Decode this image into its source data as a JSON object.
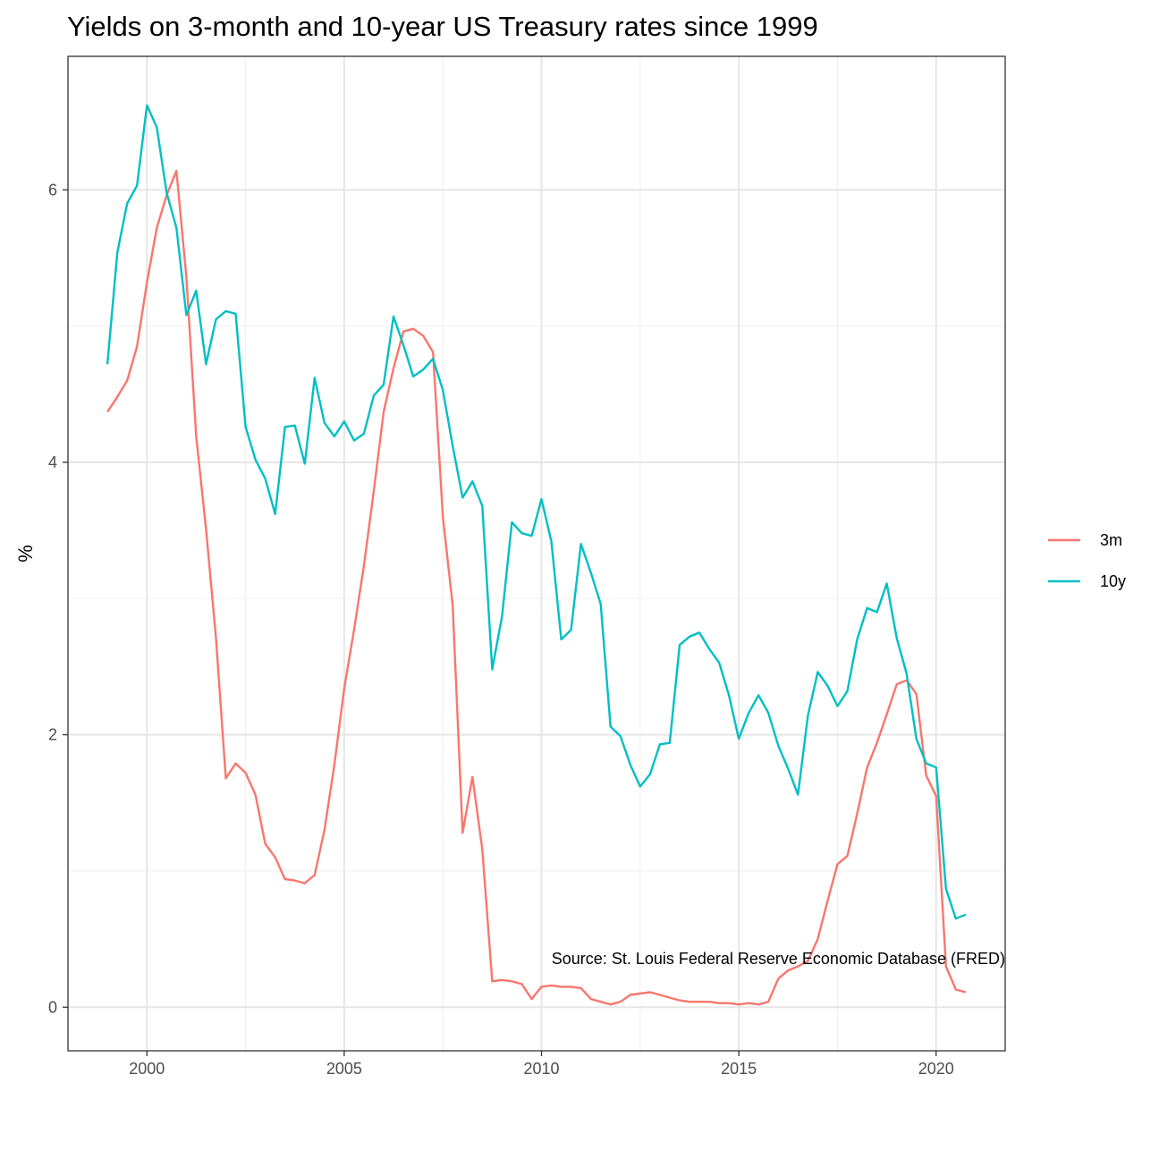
{
  "chart_data": {
    "type": "line",
    "title": "Yields on 3-month and 10-year US Treasury rates since 1999",
    "xlabel": "",
    "ylabel": "%",
    "caption": "Source: St. Louis Federal Reserve Economic Database (FRED)",
    "xlim": [
      1998.0,
      2021.75
    ],
    "ylim": [
      -0.32,
      6.98
    ],
    "x_ticks": [
      2000,
      2005,
      2010,
      2015,
      2020
    ],
    "x_tick_labels": [
      "2000",
      "2005",
      "2010",
      "2015",
      "2020"
    ],
    "y_ticks": [
      0,
      2,
      4,
      6
    ],
    "y_tick_labels": [
      "0",
      "2",
      "4",
      "6"
    ],
    "grid": true,
    "legend": "right",
    "x": [
      1999.0,
      1999.25,
      1999.5,
      1999.75,
      2000.0,
      2000.25,
      2000.5,
      2000.75,
      2001.0,
      2001.25,
      2001.5,
      2001.75,
      2002.0,
      2002.25,
      2002.5,
      2002.75,
      2003.0,
      2003.25,
      2003.5,
      2003.75,
      2004.0,
      2004.25,
      2004.5,
      2004.75,
      2005.0,
      2005.25,
      2005.5,
      2005.75,
      2006.0,
      2006.25,
      2006.5,
      2006.75,
      2007.0,
      2007.25,
      2007.5,
      2007.75,
      2008.0,
      2008.25,
      2008.5,
      2008.75,
      2009.0,
      2009.25,
      2009.5,
      2009.75,
      2010.0,
      2010.25,
      2010.5,
      2010.75,
      2011.0,
      2011.25,
      2011.5,
      2011.75,
      2012.0,
      2012.25,
      2012.5,
      2012.75,
      2013.0,
      2013.25,
      2013.5,
      2013.75,
      2014.0,
      2014.25,
      2014.5,
      2014.75,
      2015.0,
      2015.25,
      2015.5,
      2015.75,
      2016.0,
      2016.25,
      2016.5,
      2016.75,
      2017.0,
      2017.25,
      2017.5,
      2017.75,
      2018.0,
      2018.25,
      2018.5,
      2018.75,
      2019.0,
      2019.25,
      2019.5,
      2019.75,
      2020.0,
      2020.25,
      2020.5,
      2020.75
    ],
    "series": [
      {
        "name": "3m",
        "color": "#F8766D",
        "values": [
          4.37,
          4.48,
          4.6,
          4.85,
          5.32,
          5.72,
          5.96,
          6.14,
          5.36,
          4.19,
          3.51,
          2.71,
          1.68,
          1.79,
          1.72,
          1.56,
          1.2,
          1.1,
          0.94,
          0.93,
          0.91,
          0.97,
          1.3,
          1.78,
          2.34,
          2.77,
          3.24,
          3.79,
          4.37,
          4.69,
          4.96,
          4.98,
          4.93,
          4.81,
          3.6,
          2.95,
          1.28,
          1.69,
          1.16,
          0.19,
          0.2,
          0.19,
          0.17,
          0.06,
          0.15,
          0.16,
          0.15,
          0.15,
          0.14,
          0.06,
          0.04,
          0.02,
          0.04,
          0.09,
          0.1,
          0.11,
          0.09,
          0.07,
          0.05,
          0.04,
          0.04,
          0.04,
          0.03,
          0.03,
          0.02,
          0.03,
          0.02,
          0.04,
          0.21,
          0.27,
          0.3,
          0.34,
          0.5,
          0.78,
          1.05,
          1.11,
          1.42,
          1.76,
          1.94,
          2.15,
          2.37,
          2.4,
          2.3,
          1.7,
          1.55,
          0.3,
          0.13,
          0.11
        ]
      },
      {
        "name": "10y",
        "color": "#00BFC4",
        "values": [
          4.72,
          5.54,
          5.9,
          6.03,
          6.62,
          6.46,
          5.98,
          5.72,
          5.08,
          5.26,
          4.72,
          5.05,
          5.11,
          5.09,
          4.26,
          4.02,
          3.88,
          3.62,
          4.26,
          4.27,
          3.99,
          4.62,
          4.29,
          4.19,
          4.3,
          4.16,
          4.21,
          4.49,
          4.57,
          5.07,
          4.86,
          4.63,
          4.68,
          4.76,
          4.53,
          4.12,
          3.74,
          3.86,
          3.68,
          2.48,
          2.87,
          3.56,
          3.48,
          3.46,
          3.73,
          3.42,
          2.7,
          2.77,
          3.4,
          3.19,
          2.96,
          2.06,
          1.99,
          1.78,
          1.62,
          1.71,
          1.93,
          1.94,
          2.66,
          2.72,
          2.75,
          2.63,
          2.53,
          2.29,
          1.97,
          2.16,
          2.29,
          2.16,
          1.92,
          1.75,
          1.56,
          2.14,
          2.46,
          2.36,
          2.21,
          2.32,
          2.7,
          2.93,
          2.9,
          3.11,
          2.71,
          2.45,
          1.97,
          1.79,
          1.76,
          0.87,
          0.65,
          0.68
        ]
      }
    ]
  }
}
